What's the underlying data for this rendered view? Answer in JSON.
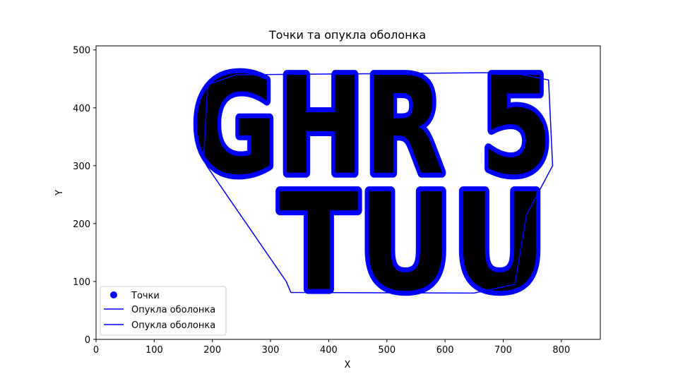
{
  "chart_data": {
    "type": "scatter",
    "title": "Точки та опукла оболонка",
    "xlabel": "X",
    "ylabel": "Y",
    "xlim": [
      0,
      867
    ],
    "ylim": [
      0,
      507
    ],
    "xticks": [
      0,
      100,
      200,
      300,
      400,
      500,
      600,
      700,
      800
    ],
    "yticks": [
      0,
      100,
      200,
      300,
      400,
      500
    ],
    "grid": false,
    "legend_position": "lower-left",
    "colors": {
      "points": "#0000ff",
      "hull": "#0000ff"
    },
    "legend": [
      {
        "label": "Точки",
        "kind": "marker"
      },
      {
        "label": "Опукла оболонка",
        "kind": "line"
      },
      {
        "label": "Опукла оболонка",
        "kind": "line"
      }
    ],
    "points_text": "GHR 5\nTUU",
    "hull": [
      [
        185,
        315
      ],
      [
        192,
        440
      ],
      [
        240,
        457
      ],
      [
        715,
        461
      ],
      [
        778,
        448
      ],
      [
        785,
        300
      ],
      [
        740,
        215
      ],
      [
        720,
        95
      ],
      [
        650,
        80
      ],
      [
        335,
        81
      ],
      [
        327,
        100
      ],
      [
        190,
        300
      ]
    ]
  }
}
